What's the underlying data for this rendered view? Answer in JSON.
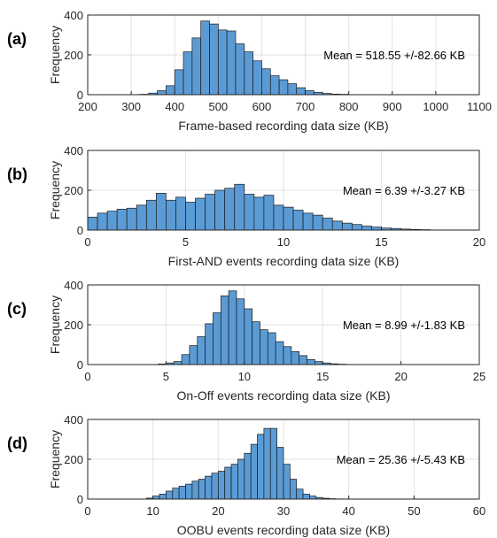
{
  "chart_data": [
    {
      "panel_label": "(a)",
      "type": "bar",
      "xlabel": "Frame-based recording data size (KB)",
      "ylabel": "Frequency",
      "xlim": [
        200,
        1100
      ],
      "ylim": [
        0,
        400
      ],
      "xticks": [
        200,
        300,
        400,
        500,
        600,
        700,
        800,
        900,
        1000,
        1100
      ],
      "yticks": [
        0,
        200,
        400
      ],
      "annotation": "Mean = 518.55 +/-82.66  KB",
      "bin_start": 320,
      "bin_width": 20,
      "values": [
        2,
        8,
        20,
        45,
        125,
        215,
        285,
        370,
        355,
        325,
        320,
        255,
        215,
        170,
        130,
        95,
        75,
        55,
        35,
        20,
        12,
        6,
        3,
        2
      ]
    },
    {
      "panel_label": "(b)",
      "type": "bar",
      "xlabel": "First-AND events recording data size (KB)",
      "ylabel": "Frequency",
      "xlim": [
        0,
        20
      ],
      "ylim": [
        0,
        400
      ],
      "xticks": [
        0,
        5,
        10,
        15,
        20
      ],
      "yticks": [
        0,
        200,
        400
      ],
      "annotation": "Mean = 6.39 +/-3.27  KB",
      "bin_start": 0,
      "bin_width": 0.5,
      "values": [
        65,
        85,
        95,
        105,
        110,
        125,
        150,
        185,
        150,
        165,
        140,
        160,
        180,
        200,
        210,
        230,
        180,
        165,
        175,
        125,
        115,
        100,
        85,
        75,
        60,
        45,
        35,
        28,
        20,
        15,
        10,
        8,
        5,
        3,
        2
      ]
    },
    {
      "panel_label": "(c)",
      "type": "bar",
      "xlabel": "On-Off events recording data size (KB)",
      "ylabel": "Frequency",
      "xlim": [
        0,
        25
      ],
      "ylim": [
        0,
        400
      ],
      "xticks": [
        0,
        5,
        10,
        15,
        20,
        25
      ],
      "yticks": [
        0,
        200,
        400
      ],
      "annotation": "Mean = 8.99 +/-1.83  KB",
      "bin_start": 4.5,
      "bin_width": 0.5,
      "values": [
        3,
        8,
        15,
        50,
        95,
        140,
        205,
        260,
        345,
        370,
        330,
        280,
        215,
        175,
        160,
        115,
        90,
        65,
        45,
        25,
        15,
        8,
        4,
        2
      ]
    },
    {
      "panel_label": "(d)",
      "type": "bar",
      "xlabel": "OOBU events recording data size (KB)",
      "ylabel": "Frequency",
      "xlim": [
        0,
        60
      ],
      "ylim": [
        0,
        400
      ],
      "xticks": [
        0,
        10,
        20,
        30,
        40,
        50,
        60
      ],
      "yticks": [
        0,
        200,
        400
      ],
      "annotation": "Mean = 25.36 +/-5.43  KB",
      "bin_start": 9,
      "bin_width": 1,
      "values": [
        5,
        15,
        25,
        40,
        55,
        65,
        75,
        90,
        100,
        115,
        130,
        140,
        160,
        175,
        200,
        230,
        275,
        325,
        355,
        355,
        260,
        175,
        100,
        50,
        25,
        15,
        8,
        4,
        2,
        1
      ]
    }
  ]
}
